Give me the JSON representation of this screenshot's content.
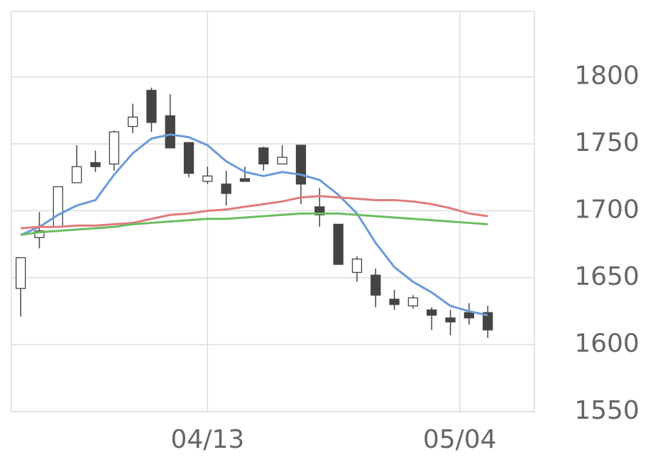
{
  "chart_data": {
    "type": "candlestick",
    "x": [
      0,
      1,
      2,
      3,
      4,
      5,
      6,
      7,
      8,
      9,
      10,
      11,
      12,
      13,
      14,
      15,
      16,
      17,
      18,
      19,
      20,
      21,
      22,
      23,
      24,
      25
    ],
    "open": [
      1642,
      1680,
      1688,
      1721,
      1736,
      1735,
      1763,
      1790,
      1771,
      1751,
      1722,
      1720,
      1724,
      1747,
      1735,
      1749,
      1703,
      1690,
      1654,
      1652,
      1634,
      1629,
      1626,
      1620,
      1624,
      1624
    ],
    "high": [
      1665,
      1699,
      1718,
      1749,
      1745,
      1760,
      1780,
      1792,
      1787,
      1751,
      1733,
      1730,
      1733,
      1748,
      1749,
      1749,
      1717,
      1690,
      1666,
      1657,
      1641,
      1637,
      1628,
      1626,
      1631,
      1629
    ],
    "low": [
      1621,
      1672,
      1688,
      1721,
      1729,
      1730,
      1758,
      1759,
      1747,
      1725,
      1720,
      1704,
      1722,
      1730,
      1735,
      1705,
      1688,
      1660,
      1647,
      1628,
      1626,
      1627,
      1611,
      1607,
      1615,
      1605
    ],
    "close": [
      1665,
      1685,
      1718,
      1733,
      1733,
      1759,
      1770,
      1766,
      1747,
      1728,
      1726,
      1713,
      1722,
      1735,
      1740,
      1720,
      1697,
      1660,
      1664,
      1637,
      1630,
      1635,
      1622,
      1617,
      1620,
      1611
    ],
    "up_color": "#ffffff",
    "down_color": "#444444",
    "edge_color": "#444444",
    "lines": [
      {
        "color": "#6a9bd8",
        "values": [
          1682,
          1688,
          1697,
          1704,
          1708,
          1727,
          1743,
          1754,
          1757,
          1755,
          1749,
          1737,
          1729,
          1726,
          1729,
          1727,
          1723,
          1712,
          1698,
          1676,
          1658,
          1647,
          1639,
          1629,
          1625,
          1622
        ]
      },
      {
        "color": "#e07b7b",
        "values": [
          1687,
          1688,
          1688,
          1689,
          1689,
          1690,
          1691,
          1694,
          1697,
          1698,
          1700,
          1701,
          1703,
          1705,
          1707,
          1710,
          1711,
          1710,
          1709,
          1708,
          1708,
          1707,
          1705,
          1702,
          1698,
          1696
        ]
      },
      {
        "color": "#6dbb63",
        "values": [
          1682,
          1684,
          1685,
          1686,
          1687,
          1688,
          1690,
          1691,
          1692,
          1693,
          1694,
          1694,
          1695,
          1696,
          1697,
          1698,
          1698,
          1698,
          1697,
          1696,
          1695,
          1694,
          1693,
          1692,
          1691,
          1690
        ]
      }
    ],
    "xlim": [
      -0.5,
      27.5
    ],
    "xticks": [
      {
        "value": 10,
        "label": "04/13"
      },
      {
        "value": 23.5,
        "label": "05/04"
      }
    ],
    "ylim": [
      1550,
      1849
    ],
    "yticks": [
      1550,
      1600,
      1650,
      1700,
      1750,
      1800
    ],
    "grid": true
  }
}
